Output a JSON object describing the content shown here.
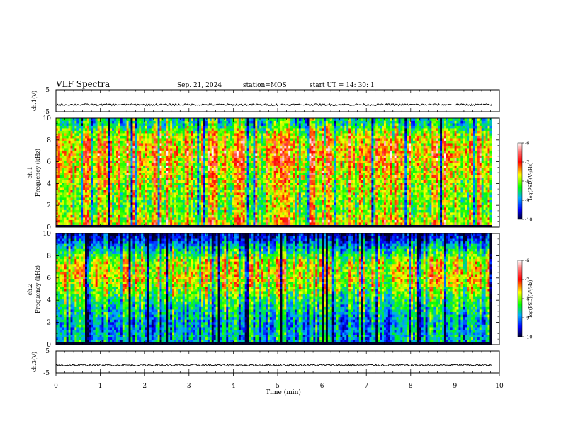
{
  "header": {
    "title": "VLF Spectra",
    "date": "Sep. 21, 2024",
    "station": "station=MOS",
    "start": "start  UT =   14: 30: 1"
  },
  "chart_data": [
    {
      "type": "line",
      "panel": "channel-1-waveform",
      "ylabel": "ch.1(V)",
      "ylim": [
        -5,
        5
      ],
      "yticks": [
        "5",
        "-5"
      ],
      "x_range": [
        0,
        9.83
      ],
      "baseline_value": -1.8
    },
    {
      "type": "heatmap",
      "panel": "channel-1-spectrogram",
      "ylabel_top": "ch.1",
      "ylabel": "Frequency (kHz)",
      "ylim": [
        0,
        10
      ],
      "yticks": [
        "0",
        "2",
        "4",
        "6",
        "8",
        "10"
      ],
      "x_range": [
        0,
        9.83
      ],
      "colorbar": {
        "label": "log(PSD)(V²/Hz)",
        "range": [
          -10,
          -6
        ],
        "ticks": [
          "-6",
          "-7",
          "-8",
          "-9",
          "-10"
        ]
      },
      "profile": [
        {
          "freq_khz": 0.5,
          "log_psd": -7.2
        },
        {
          "freq_khz": 1.5,
          "log_psd": -7.6
        },
        {
          "freq_khz": 3.0,
          "log_psd": -7.5
        },
        {
          "freq_khz": 5.0,
          "log_psd": -7.2
        },
        {
          "freq_khz": 7.0,
          "log_psd": -7.0
        },
        {
          "freq_khz": 8.5,
          "log_psd": -7.3
        },
        {
          "freq_khz": 9.5,
          "log_psd": -8.2
        }
      ]
    },
    {
      "type": "heatmap",
      "panel": "channel-2-spectrogram",
      "ylabel_top": "ch.2",
      "ylabel": "Frequency (kHz)",
      "ylim": [
        0,
        10
      ],
      "yticks": [
        "0",
        "2",
        "4",
        "6",
        "8",
        "10"
      ],
      "x_range": [
        0,
        9.83
      ],
      "colorbar": {
        "label": "log(PSD)(V²/Hz)",
        "range": [
          -10,
          -6
        ],
        "ticks": [
          "-6",
          "-7",
          "-8",
          "-9",
          "-10"
        ]
      },
      "profile": [
        {
          "freq_khz": 0.5,
          "log_psd": -8.6
        },
        {
          "freq_khz": 2.0,
          "log_psd": -8.7
        },
        {
          "freq_khz": 4.0,
          "log_psd": -8.1
        },
        {
          "freq_khz": 6.0,
          "log_psd": -7.3
        },
        {
          "freq_khz": 7.5,
          "log_psd": -7.5
        },
        {
          "freq_khz": 9.0,
          "log_psd": -8.8
        },
        {
          "freq_khz": 9.8,
          "log_psd": -9.6
        }
      ]
    },
    {
      "type": "line",
      "panel": "channel-3-waveform",
      "ylabel": "ch.3(V)",
      "ylim": [
        -5,
        5
      ],
      "yticks": [
        "5",
        "-5"
      ],
      "x_range": [
        0,
        9.83
      ],
      "baseline_value": -1.5
    }
  ],
  "xaxis": {
    "label": "Time (min)",
    "range": [
      0,
      10
    ],
    "ticks": [
      "0",
      "1",
      "2",
      "3",
      "4",
      "5",
      "6",
      "7",
      "8",
      "9",
      "10"
    ]
  },
  "colors": {
    "colormap": [
      "#00002a",
      "#0000ff",
      "#00aaff",
      "#00ff00",
      "#ffff00",
      "#ff0000",
      "#ffffff"
    ]
  }
}
